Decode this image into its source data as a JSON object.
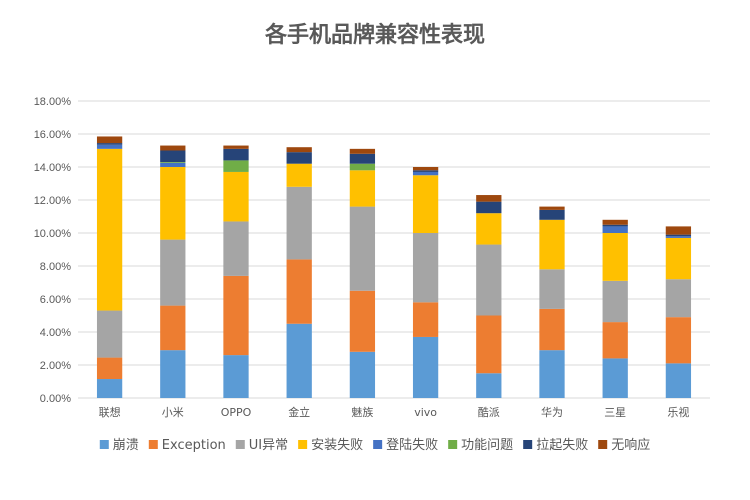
{
  "chart_data": {
    "type": "bar",
    "stacked": true,
    "title": "各手机品牌兼容性表现",
    "xlabel": "",
    "ylabel": "",
    "ylim": [
      0,
      0.18
    ],
    "y_ticks": [
      "0.00%",
      "2.00%",
      "4.00%",
      "6.00%",
      "8.00%",
      "10.00%",
      "12.00%",
      "14.00%",
      "16.00%",
      "18.00%"
    ],
    "grid": true,
    "legend_position": "bottom",
    "categories": [
      "联想",
      "小米",
      "OPPO",
      "金立",
      "魅族",
      "vivo",
      "酷派",
      "华为",
      "三星",
      "乐视"
    ],
    "series": [
      {
        "name": "崩溃",
        "color": "#5b9bd5",
        "values": [
          0.0115,
          0.029,
          0.026,
          0.045,
          0.028,
          0.037,
          0.015,
          0.029,
          0.024,
          0.021
        ]
      },
      {
        "name": "Exception",
        "color": "#ed7d31",
        "values": [
          0.013,
          0.027,
          0.048,
          0.039,
          0.037,
          0.021,
          0.035,
          0.025,
          0.022,
          0.028
        ]
      },
      {
        "name": "UI异常",
        "color": "#a5a5a5",
        "values": [
          0.0285,
          0.04,
          0.033,
          0.044,
          0.051,
          0.042,
          0.043,
          0.024,
          0.025,
          0.023
        ]
      },
      {
        "name": "安装失败",
        "color": "#ffc000",
        "values": [
          0.098,
          0.044,
          0.03,
          0.014,
          0.022,
          0.035,
          0.019,
          0.03,
          0.029,
          0.025
        ]
      },
      {
        "name": "登陆失败",
        "color": "#4472c4",
        "values": [
          0.0025,
          0.0025,
          0.0,
          0.0,
          0.0,
          0.002,
          0.0,
          0.0,
          0.004,
          0.001
        ]
      },
      {
        "name": "功能问题",
        "color": "#70ad47",
        "values": [
          0.0,
          0.0005,
          0.007,
          0.0,
          0.004,
          0.0,
          0.0,
          0.0,
          0.0,
          0.0
        ]
      },
      {
        "name": "拉起失败",
        "color": "#264478",
        "values": [
          0.001,
          0.007,
          0.007,
          0.007,
          0.006,
          0.001,
          0.007,
          0.006,
          0.001,
          0.001
        ]
      },
      {
        "name": "无响应",
        "color": "#9e480e",
        "values": [
          0.004,
          0.003,
          0.002,
          0.003,
          0.003,
          0.002,
          0.004,
          0.002,
          0.003,
          0.005
        ]
      }
    ]
  }
}
